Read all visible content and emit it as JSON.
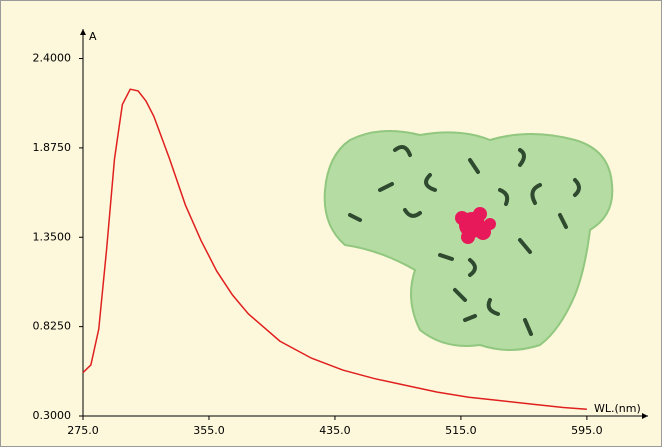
{
  "chart_data": {
    "type": "line",
    "x_label": "WL.(nm)",
    "y_label": "A",
    "xlim": [
      275,
      630
    ],
    "ylim": [
      0.3,
      2.55
    ],
    "xticks": [
      {
        "value": 275,
        "label": "275.0"
      },
      {
        "value": 355,
        "label": "355.0"
      },
      {
        "value": 435,
        "label": "435.0"
      },
      {
        "value": 515,
        "label": "515.0"
      },
      {
        "value": 595,
        "label": "595.0"
      }
    ],
    "yticks": [
      {
        "value": 0.3,
        "label": "0.3000"
      },
      {
        "value": 0.825,
        "label": "0.8250"
      },
      {
        "value": 1.35,
        "label": "1.3500"
      },
      {
        "value": 1.875,
        "label": "1.8750"
      },
      {
        "value": 2.4,
        "label": "2.4000"
      }
    ],
    "x": [
      275,
      280,
      285,
      290,
      295,
      300,
      305,
      310,
      315,
      320,
      330,
      340,
      350,
      360,
      370,
      380,
      400,
      420,
      440,
      460,
      480,
      500,
      520,
      540,
      560,
      580,
      595
    ],
    "series": [
      {
        "color": "#e0201f",
        "values": [
          0.555,
          0.6,
          0.81,
          1.28,
          1.81,
          2.13,
          2.22,
          2.21,
          2.15,
          2.06,
          1.81,
          1.54,
          1.33,
          1.15,
          1.01,
          0.9,
          0.74,
          0.64,
          0.57,
          0.52,
          0.48,
          0.44,
          0.41,
          0.39,
          0.37,
          0.35,
          0.34
        ]
      }
    ]
  }
}
